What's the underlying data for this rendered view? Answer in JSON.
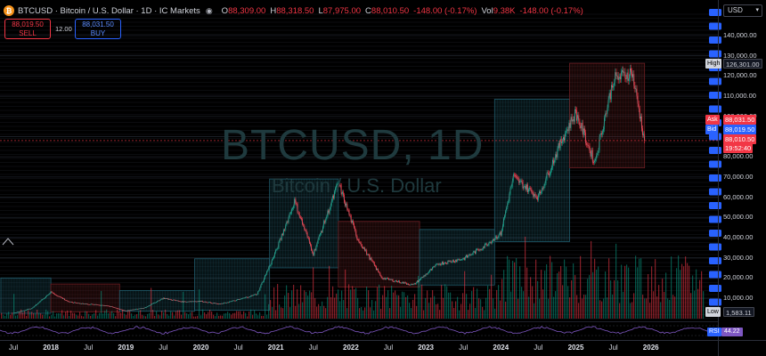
{
  "header": {
    "symbol_title": "BTCUSD · Bitcoin / U.S. Dollar · 1D · IC Markets",
    "ohlc": [
      {
        "k": "O",
        "v": "88,309.00"
      },
      {
        "k": "H",
        "v": "88,318.50"
      },
      {
        "k": "L",
        "v": "87,975.00"
      },
      {
        "k": "C",
        "v": "88,010.50"
      },
      {
        "k": "",
        "v": "-148.00 (-0.17%)"
      }
    ],
    "volume_key": "Vol",
    "volume_value": "9.38K",
    "volume_change": "-148.00 (-0.17%)",
    "currency": "USD"
  },
  "trade": {
    "sell_price": "88,019.50",
    "sell_label": "SELL",
    "spread": "12.00",
    "buy_price": "88,031.50",
    "buy_label": "BUY"
  },
  "watermark": {
    "symbol": "BTCUSD, 1D",
    "description": "Bitcoin / U.S. Dollar"
  },
  "price_axis": {
    "ticks": [
      "140,000.00",
      "130,000.00",
      "120,000.00",
      "110,000.00",
      "100,000.00",
      "90,000.00",
      "80,000.00",
      "70,000.00",
      "60,000.00",
      "50,000.00",
      "40,000.00",
      "30,000.00",
      "20,000.00",
      "10,000.00"
    ],
    "high_key": "High",
    "high_value": "126,301.00",
    "ask_key": "Ask",
    "ask_value": "88,031.50",
    "bid_key": "Bid",
    "bid_value": "88,019.50",
    "last_value": "88,010.50",
    "countdown": "19:52:40",
    "low_key": "Low",
    "low_value": "1,583.11",
    "rsi_key": "RSI",
    "rsi_value": "44.22"
  },
  "time_axis": [
    {
      "label": "Jul",
      "year": false
    },
    {
      "label": "2018",
      "year": true
    },
    {
      "label": "Jul",
      "year": false
    },
    {
      "label": "2019",
      "year": true
    },
    {
      "label": "Jul",
      "year": false
    },
    {
      "label": "2020",
      "year": true
    },
    {
      "label": "Jul",
      "year": false
    },
    {
      "label": "2021",
      "year": true
    },
    {
      "label": "Jul",
      "year": false
    },
    {
      "label": "2022",
      "year": true
    },
    {
      "label": "Jul",
      "year": false
    },
    {
      "label": "2023",
      "year": true
    },
    {
      "label": "Jul",
      "year": false
    },
    {
      "label": "2024",
      "year": true
    },
    {
      "label": "Jul",
      "year": false
    },
    {
      "label": "2025",
      "year": true
    },
    {
      "label": "Jul",
      "year": false
    },
    {
      "label": "2026",
      "year": true
    }
  ],
  "colors": {
    "up": "#089981",
    "down": "#f23645",
    "bull_box": "#1f5a6a",
    "bear_box": "#6b1e22",
    "rsi": "#7e57c2"
  },
  "chart_data": {
    "type": "line",
    "title": "BTCUSD, 1D",
    "xlabel": "",
    "ylabel": "",
    "ylim": [
      0,
      145000
    ],
    "series": [
      {
        "name": "Close",
        "x": [
          "2017-07",
          "2017-10",
          "2018-01",
          "2018-04",
          "2018-07",
          "2018-10",
          "2019-01",
          "2019-04",
          "2019-07",
          "2019-10",
          "2020-01",
          "2020-04",
          "2020-07",
          "2020-10",
          "2021-01",
          "2021-04",
          "2021-07",
          "2021-11",
          "2022-02",
          "2022-06",
          "2022-11",
          "2023-03",
          "2023-07",
          "2023-10",
          "2024-01",
          "2024-03",
          "2024-07",
          "2024-11",
          "2025-01",
          "2025-04",
          "2025-07",
          "2025-10",
          "2025-12"
        ],
        "values": [
          2500,
          5000,
          13000,
          8000,
          7000,
          6300,
          3700,
          5200,
          10000,
          8200,
          8500,
          7000,
          9200,
          12000,
          33000,
          58000,
          32000,
          67000,
          40000,
          20000,
          16500,
          27000,
          29500,
          35000,
          42000,
          70000,
          60000,
          90000,
          102000,
          77000,
          118000,
          122000,
          88010
        ]
      }
    ]
  }
}
